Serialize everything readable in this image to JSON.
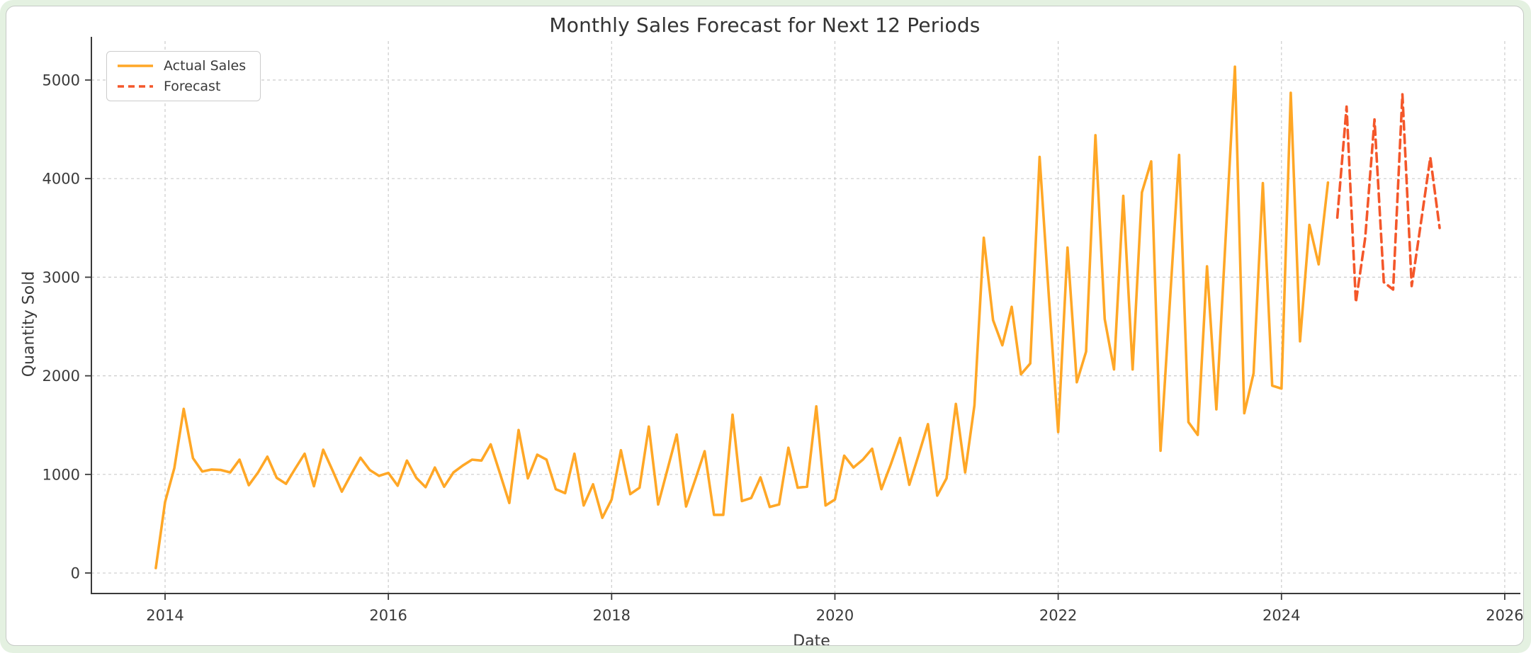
{
  "page": {
    "background_color": "#e4f1e1",
    "card_background": "#ffffff",
    "card_border_color": "#c6cac6"
  },
  "chart_data": {
    "type": "line",
    "title": "Monthly Sales Forecast for Next 12 Periods",
    "xlabel": "Date",
    "ylabel": "Quantity Sold",
    "x_ticks": [
      2014,
      2016,
      2018,
      2020,
      2022,
      2024,
      2026
    ],
    "x_tick_labels": [
      "2014",
      "2016",
      "2018",
      "2020",
      "2022",
      "2024",
      "2026"
    ],
    "y_ticks": [
      0,
      1000,
      2000,
      3000,
      4000,
      5000
    ],
    "y_tick_labels": [
      "0",
      "1000",
      "2000",
      "3000",
      "4000",
      "5000"
    ],
    "xlim": [
      2013.34,
      2026.14
    ],
    "ylim": [
      -208,
      5395
    ],
    "grid": true,
    "gridline_color": "#cccccc",
    "spine_color": "#3a3a3a",
    "legend_position": "upper-left",
    "series": [
      {
        "name": "Actual Sales",
        "color": "#ffa726",
        "style": "solid",
        "freq": "monthly",
        "start": "2013-12",
        "values": [
          50,
          720,
          1065,
          1665,
          1165,
          1030,
          1050,
          1045,
          1020,
          1150,
          890,
          1020,
          1180,
          965,
          905,
          1060,
          1210,
          880,
          1250,
          1040,
          825,
          1000,
          1170,
          1045,
          985,
          1015,
          885,
          1140,
          965,
          870,
          1070,
          875,
          1020,
          1090,
          1150,
          1140,
          1305,
          1010,
          710,
          1450,
          960,
          1200,
          1150,
          850,
          810,
          1210,
          685,
          900,
          560,
          745,
          1245,
          800,
          865,
          1485,
          695,
          1050,
          1405,
          675,
          950,
          1235,
          590,
          590,
          1605,
          730,
          760,
          970,
          670,
          695,
          1270,
          865,
          875,
          1690,
          685,
          745,
          1190,
          1070,
          1150,
          1260,
          850,
          1100,
          1370,
          895,
          1200,
          1510,
          785,
          960,
          1715,
          1020,
          1700,
          3400,
          2565,
          2310,
          2700,
          2015,
          2125,
          4220,
          2800,
          1430,
          3300,
          1935,
          2245,
          4440,
          2575,
          2065,
          3825,
          2065,
          3860,
          4175,
          1240,
          2740,
          4240,
          1530,
          1400,
          3110,
          1660,
          3400,
          5135,
          1620,
          2025,
          3955,
          1900,
          1870,
          4870,
          2350,
          3530,
          3130,
          3960
        ]
      },
      {
        "name": "Forecast",
        "color": "#f4572a",
        "style": "dashed",
        "freq": "monthly",
        "start": "2024-07",
        "values": [
          3605,
          4730,
          2745,
          3400,
          4600,
          2950,
          2875,
          4855,
          2910,
          3560,
          4215,
          3500
        ]
      }
    ]
  }
}
